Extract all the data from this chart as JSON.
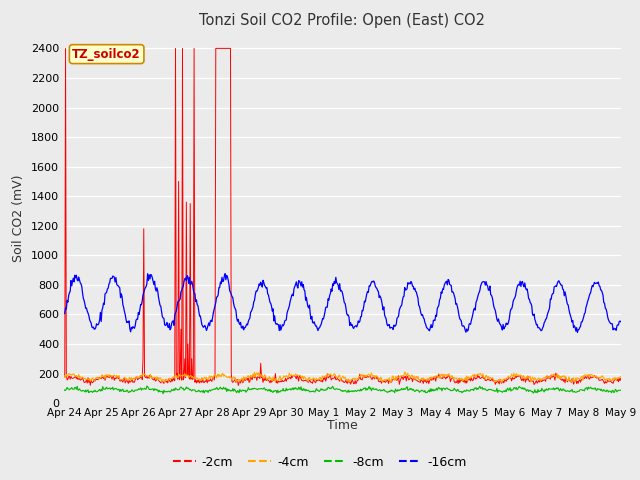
{
  "title": "Tonzi Soil CO2 Profile: Open (East) CO2",
  "ylabel": "Soil CO2 (mV)",
  "xlabel": "Time",
  "annotation_text": "TZ_soilco2",
  "annotation_color": "#cc0000",
  "annotation_bg": "#ffffcc",
  "annotation_border": "#cc8800",
  "ylim": [
    0,
    2500
  ],
  "fig_bg": "#ebebeb",
  "plot_bg": "#ebebeb",
  "colors": {
    "2cm": "#ff0000",
    "4cm": "#ffa500",
    "8cm": "#00bb00",
    "16cm": "#0000ff"
  },
  "legend_labels": [
    "-2cm",
    "-4cm",
    "-8cm",
    "-16cm"
  ],
  "legend_colors": [
    "#ff0000",
    "#ffa500",
    "#00bb00",
    "#0000ff"
  ],
  "x_tick_labels": [
    "Apr 24",
    "Apr 25",
    "Apr 26",
    "Apr 27",
    "Apr 28",
    "Apr 29",
    "Apr 30",
    "May 1",
    "May 2",
    "May 3",
    "May 4",
    "May 5",
    "May 6",
    "May 7",
    "May 8",
    "May 9"
  ],
  "yticks": [
    0,
    200,
    400,
    600,
    800,
    1000,
    1200,
    1400,
    1600,
    1800,
    2000,
    2200,
    2400
  ],
  "n_points": 720,
  "n_days": 15
}
